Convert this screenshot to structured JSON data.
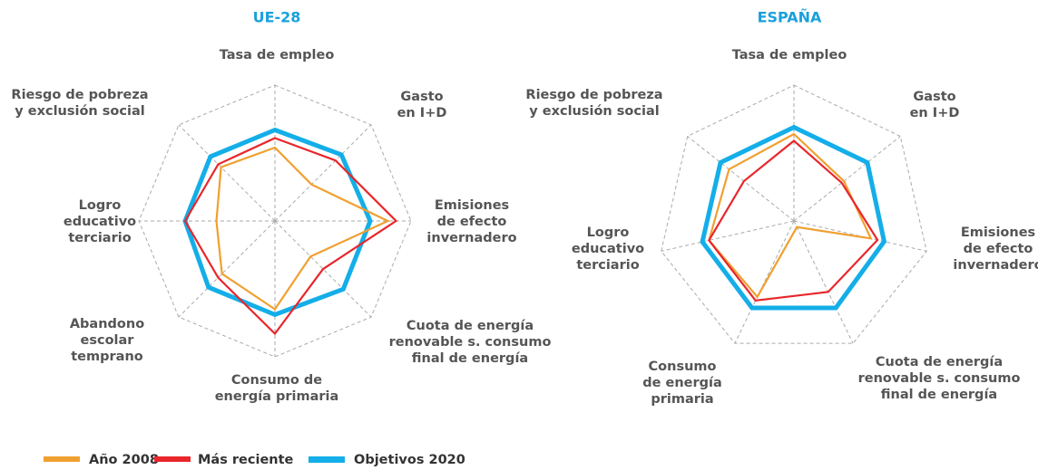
{
  "chart_data": [
    {
      "type": "radar",
      "title": "UE-28",
      "categories": [
        [
          "Tasa de empleo"
        ],
        [
          "Gasto",
          "en I+D"
        ],
        [
          "Emisiones",
          "de efecto",
          "invernadero"
        ],
        [
          "Cuota de energía",
          "renovable s. consumo",
          "final de energía"
        ],
        [
          "Consumo de",
          "energía primaria"
        ],
        [
          "Abandono",
          "escolar",
          "temprano"
        ],
        [
          "Logro",
          "educativo",
          "terciario"
        ],
        [
          "Riesgo de pobreza",
          "y exclusión social"
        ]
      ],
      "rlim": [
        0,
        1
      ],
      "series": [
        {
          "name": "Año 2008",
          "color": "#f0a030",
          "values": [
            0.54,
            0.38,
            0.83,
            0.37,
            0.65,
            0.55,
            0.43,
            0.56
          ]
        },
        {
          "name": "Más reciente",
          "color": "#e8262b",
          "values": [
            0.61,
            0.63,
            0.89,
            0.5,
            0.83,
            0.59,
            0.66,
            0.59
          ]
        },
        {
          "name": "Objetivos 2020",
          "color": "#14aee8",
          "values": [
            0.67,
            0.69,
            0.7,
            0.71,
            0.69,
            0.69,
            0.66,
            0.67
          ]
        }
      ]
    },
    {
      "type": "radar",
      "title": "ESPAÑA",
      "categories": [
        [
          "Tasa de empleo"
        ],
        [
          "Gasto",
          "en I+D"
        ],
        [
          "Emisiones",
          "de efecto",
          "invernadero"
        ],
        [
          "Cuota de energía",
          "renovable s. consumo",
          "final de energía"
        ],
        [
          "Consumo",
          "de energía",
          "primaria"
        ],
        [
          "Logro",
          "educativo",
          "terciario"
        ],
        [
          "Riesgo de pobreza",
          "y exclusión social"
        ]
      ],
      "rlim": [
        0,
        1
      ],
      "series": [
        {
          "color": "#f0a030",
          "values": [
            0.64,
            0.47,
            0.58,
            0.05,
            0.62,
            0.64,
            0.61
          ]
        },
        {
          "color": "#e8262b",
          "values": [
            0.59,
            0.45,
            0.63,
            0.58,
            0.65,
            0.64,
            0.47
          ]
        },
        {
          "color": "#14aee8",
          "values": [
            0.69,
            0.69,
            0.68,
            0.71,
            0.71,
            0.69,
            0.69
          ]
        }
      ]
    }
  ]
}
